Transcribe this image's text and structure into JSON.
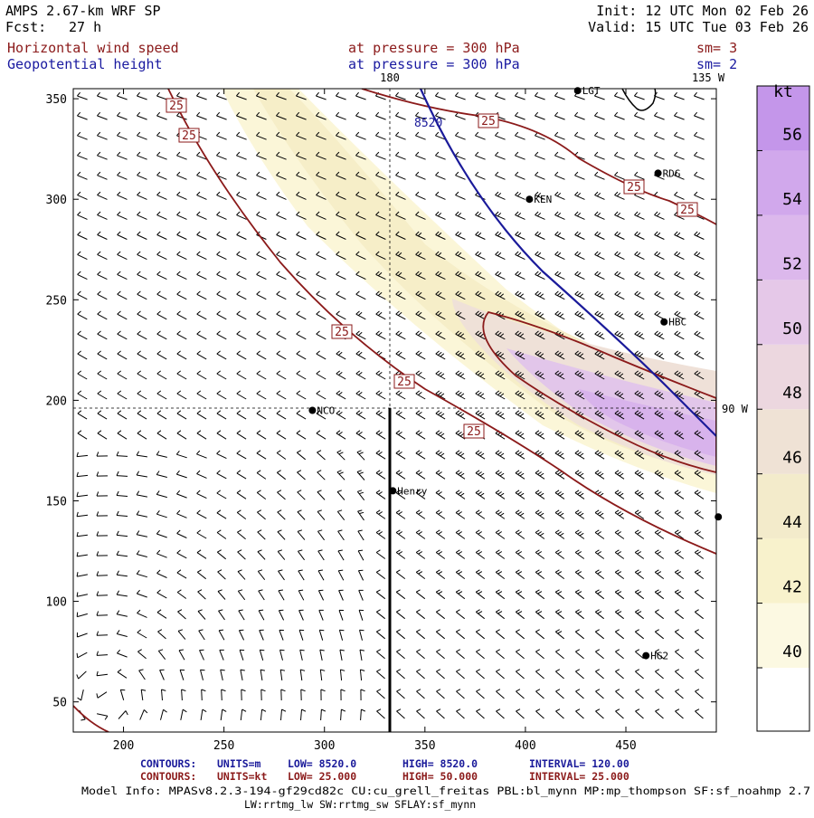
{
  "header": {
    "model": "AMPS 2.67-km WRF SP",
    "fcst_label": "Fcst:",
    "fcst_value": "27 h",
    "init": "Init: 12 UTC Mon 02 Feb 26",
    "valid": "Valid: 15 UTC Tue 03 Feb 26",
    "field1_name": "Horizontal wind speed",
    "field1_level": "at pressure =  300 hPa",
    "field1_sm": "sm= 3",
    "field2_name": "Geopotential height",
    "field2_level": "at pressure =  300 hPa",
    "field2_sm": "sm= 2"
  },
  "colors": {
    "header_text": "#000000",
    "field1_text": "#8b1a1a",
    "field2_text": "#1a1aa0",
    "speed_contour": "#8b1a1a",
    "height_contour": "#1a1a9a",
    "fill_40": "#fbf7d6",
    "fill_42": "#f7efc4",
    "fill_50": "#e8cfe6",
    "fill_54": "#d9b6ec"
  },
  "map": {
    "lon_label_180": "180",
    "lon_label_135w": "135 W",
    "lon_label_90w": "90 W",
    "x_ticks": [
      "200",
      "250",
      "300",
      "350",
      "400",
      "450"
    ],
    "y_ticks": [
      "50",
      "100",
      "150",
      "200",
      "250",
      "300",
      "350"
    ],
    "height_contour_label": "8520",
    "speed_contour_labels": [
      "25",
      "25",
      "25",
      "25",
      "25",
      "25",
      "25",
      "25"
    ],
    "stations": [
      {
        "name": "LGT",
        "x": 426,
        "y": 354
      },
      {
        "name": "RDG",
        "x": 466,
        "y": 313
      },
      {
        "name": "KEN",
        "x": 402,
        "y": 300
      },
      {
        "name": "HBC",
        "x": 469,
        "y": 239
      },
      {
        "name": "NCO",
        "x": 294,
        "y": 195
      },
      {
        "name": "Henry",
        "x": 334,
        "y": 155
      },
      {
        "name": "",
        "x": 496,
        "y": 142
      },
      {
        "name": "HG2",
        "x": 460,
        "y": 73
      }
    ]
  },
  "colorbar": {
    "unit": "kt",
    "labels": [
      "56",
      "54",
      "52",
      "50",
      "48",
      "46",
      "44",
      "42",
      "40"
    ],
    "bin_colors": [
      "#ffffff",
      "#fcf9e2",
      "#f8f2cc",
      "#f3ebcb",
      "#efe2d5",
      "#ecd7df",
      "#e5c8e8",
      "#dcb8ec",
      "#d1a8ec",
      "#c496ea"
    ]
  },
  "footer": {
    "line1_prefix": "CONTOURS:",
    "line1_units": "UNITS=m",
    "line1_low": "LOW=   8520.0",
    "line1_high": "HIGH=   8520.0",
    "line1_interval": "INTERVAL=   120.00",
    "line2_prefix": "CONTOURS:",
    "line2_units": "UNITS=kt",
    "line2_low": "LOW=   25.000",
    "line2_high": "HIGH=  50.000",
    "line2_interval": "INTERVAL=   25.000",
    "model_info": "Model Info: MPASv8.2.3-194-gf29cd82c CU:cu_grell_freitas PBL:bl_mynn MP:mp_thompson SF:sf_noahmp 2.7",
    "physics_info": "LW:rrtmg_lw SW:rrtmg_sw SFLAY:sf_mynn"
  }
}
